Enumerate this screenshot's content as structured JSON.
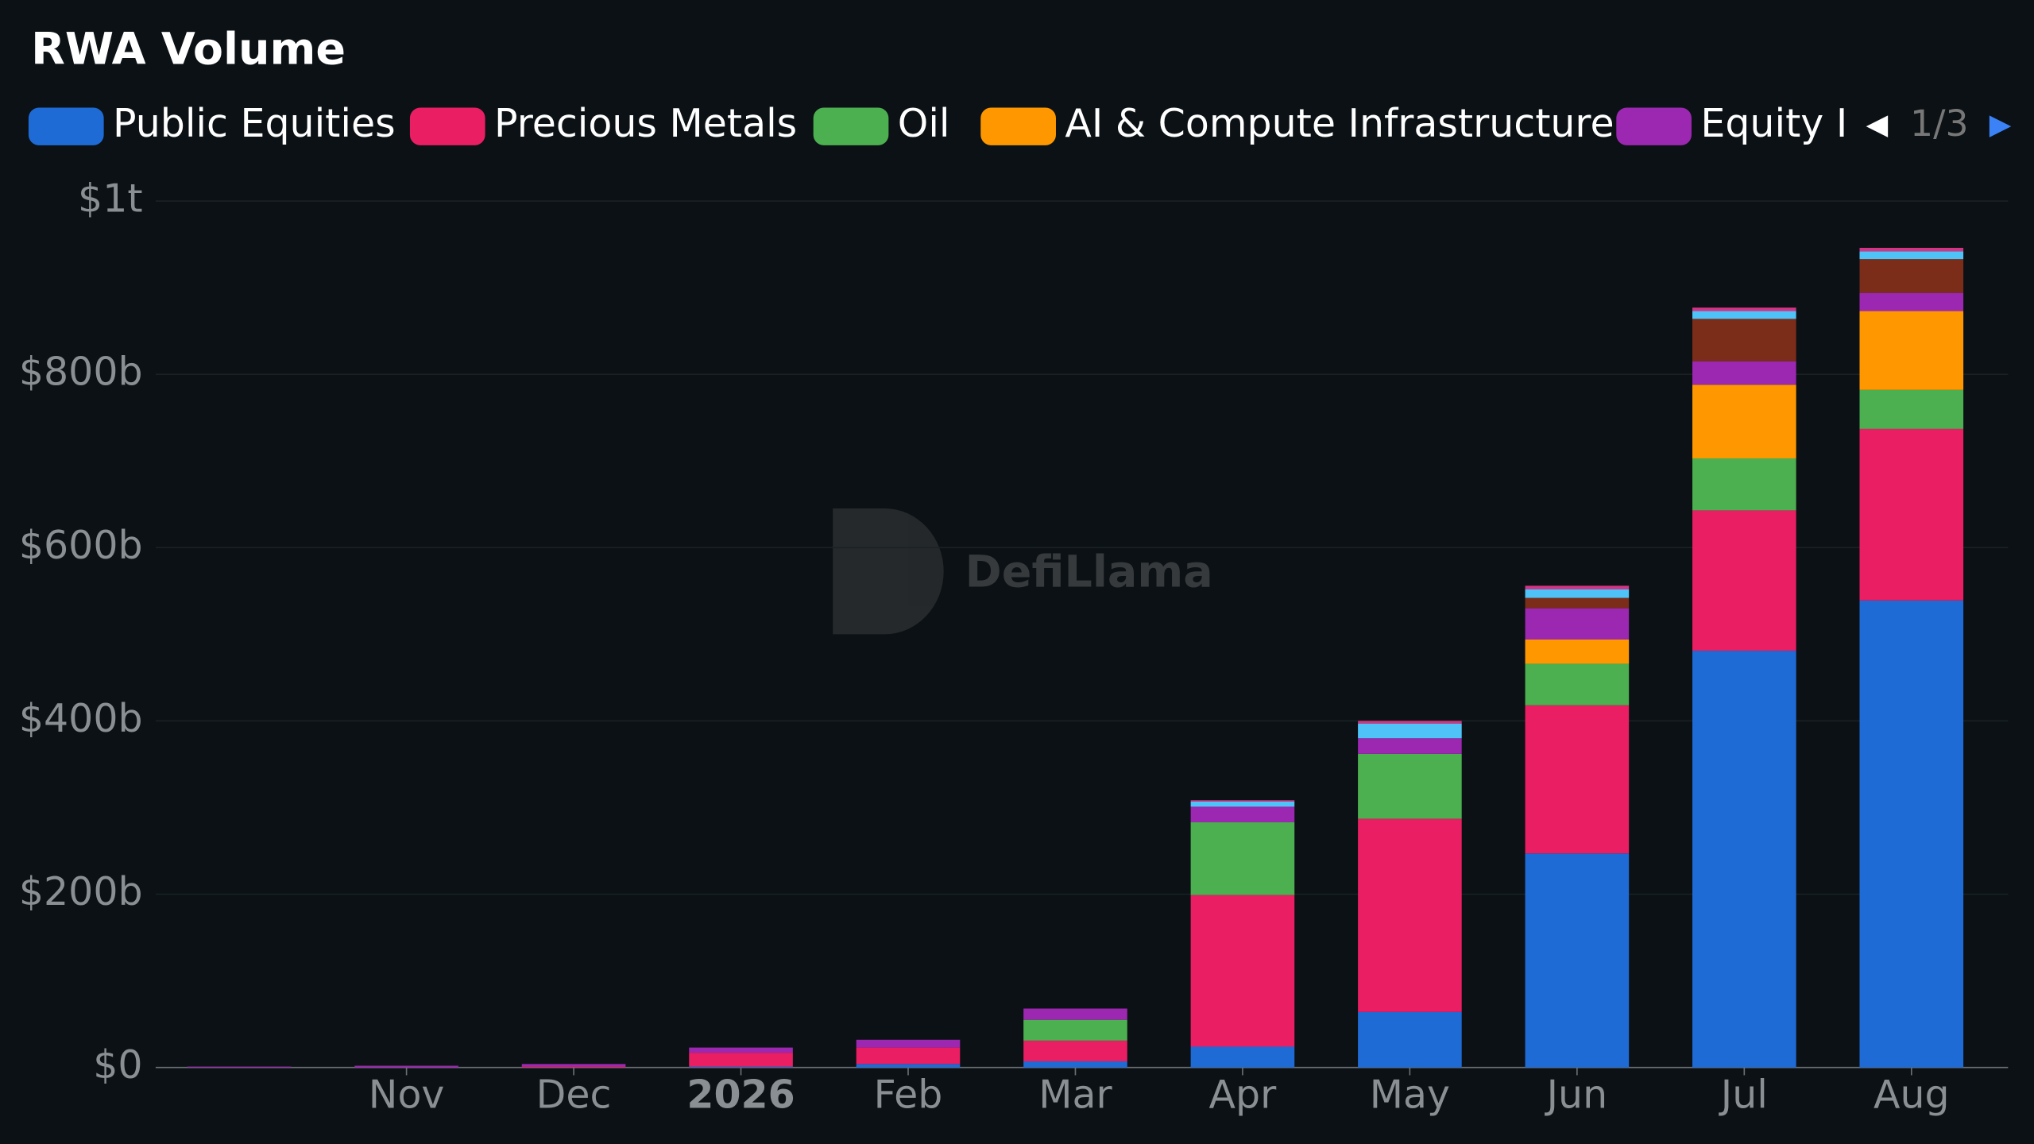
{
  "chart_data": {
    "type": "stacked-bar",
    "title": "RWA Volume",
    "watermark": "DefiLlama",
    "legend_page": "1/3",
    "categories": [
      null,
      "Nov",
      "Dec",
      "2026",
      "Feb",
      "Mar",
      "Apr",
      "May",
      "Jun",
      "Jul",
      "Aug"
    ],
    "series": [
      {
        "name": "Public Equities",
        "color": "#1f6bd6",
        "values": [
          0,
          0,
          0,
          1,
          4,
          7,
          24,
          64,
          247,
          481,
          539
        ]
      },
      {
        "name": "Precious Metals",
        "color": "#e91e63",
        "values": [
          0,
          0,
          1,
          16,
          19,
          24,
          175,
          223,
          171,
          162,
          198
        ]
      },
      {
        "name": "Oil",
        "color": "#4caf50",
        "values": [
          0,
          0,
          0,
          0,
          0,
          24,
          84,
          75,
          48,
          60,
          45
        ]
      },
      {
        "name": "AI & Compute Infrastructure",
        "color": "#ff9800",
        "values": [
          0,
          0,
          0,
          0,
          0,
          0,
          0,
          0,
          28,
          85,
          91
        ]
      },
      {
        "name": "Equity I",
        "color": "#9c27b0",
        "values": [
          1,
          2,
          3,
          6,
          9,
          13,
          18,
          18,
          36,
          27,
          21
        ]
      },
      {
        "color": "#7b2d1a",
        "values": [
          0,
          0,
          0,
          0,
          0,
          0,
          0,
          0,
          12,
          49,
          39
        ]
      },
      {
        "color": "#4fc3f7",
        "values": [
          0,
          0,
          0,
          0,
          0,
          0,
          6,
          17,
          10,
          9,
          9
        ]
      },
      {
        "color": "#d63384",
        "values": [
          0,
          0,
          0,
          0,
          0,
          0,
          1.5,
          3,
          4,
          4,
          4
        ]
      }
    ],
    "ylim": [
      0,
      1000
    ],
    "yticks": [
      {
        "value": 0,
        "label": "$0"
      },
      {
        "value": 200,
        "label": "$200b"
      },
      {
        "value": 400,
        "label": "$400b"
      },
      {
        "value": 600,
        "label": "$600b"
      },
      {
        "value": 800,
        "label": "$800b"
      },
      {
        "value": 1000,
        "label": "$1t"
      }
    ],
    "grid": true
  }
}
